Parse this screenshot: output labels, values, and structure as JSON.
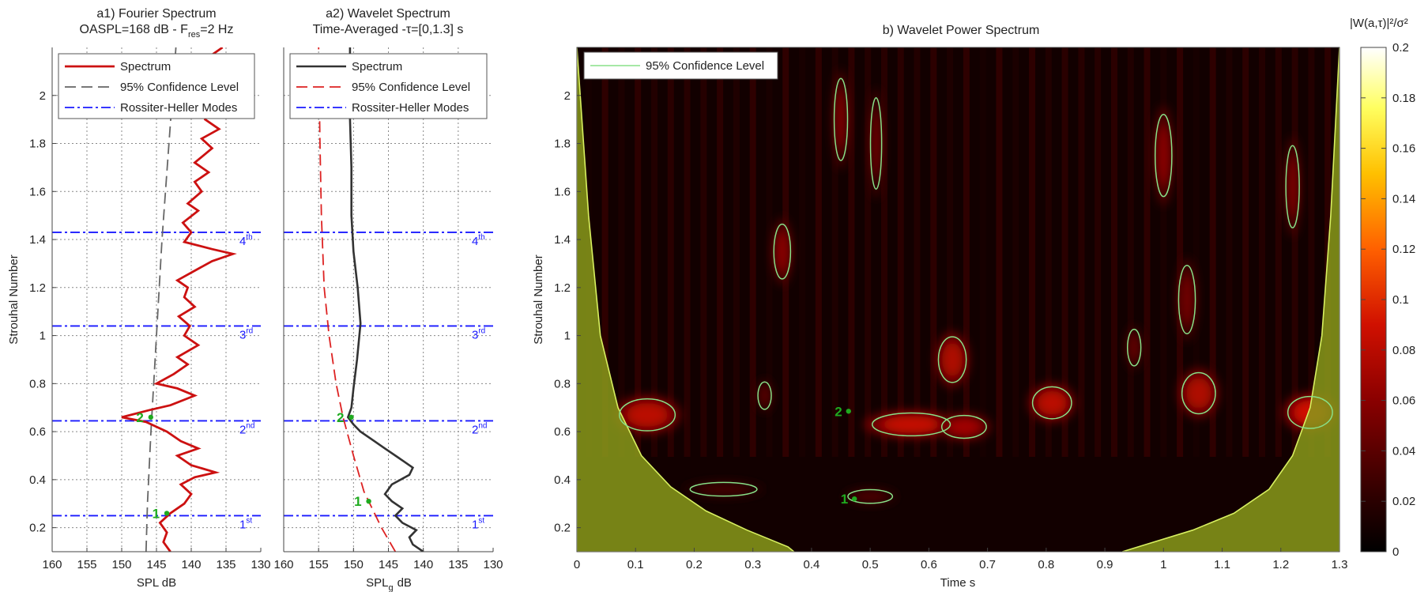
{
  "panels": {
    "a1": {
      "title_line1": "a1) Fourier Spectrum",
      "title_line2_prefix": "OASPL=168 dB - F",
      "title_line2_sub": "res",
      "title_line2_suffix": "=2 Hz",
      "xlabel": "SPL  dB",
      "ylabel": "Strouhal Number"
    },
    "a2": {
      "title_line1": "a2) Wavelet Spectrum",
      "title_line2": "Time-Averaged -τ=[0,1.3] s",
      "xlabel_main": "SPL",
      "xlabel_sub": "g",
      "xlabel_unit": "dB"
    },
    "b": {
      "title": "b) Wavelet Power Spectrum",
      "xlabel": "Time  s",
      "ylabel": "Strouhal Number",
      "colorbar_label": "|W(a,τ)|²/σ²"
    }
  },
  "legend_a": {
    "spectrum": "Spectrum",
    "confidence": "95% Confidence Level",
    "modes": "Rossiter-Heller Modes"
  },
  "legend_b": {
    "confidence": "95% Confidence Level"
  },
  "modes": [
    {
      "base": "1",
      "sup": "st",
      "st": 0.25
    },
    {
      "base": "2",
      "sup": "nd",
      "st": 0.645
    },
    {
      "base": "3",
      "sup": "rd",
      "st": 1.04
    },
    {
      "base": "4",
      "sup": "th",
      "st": 1.43
    }
  ],
  "markers": {
    "a1": [
      {
        "label": "2",
        "spl": 146.5,
        "st": 0.66
      },
      {
        "label": "1",
        "spl": 144.2,
        "st": 0.26
      }
    ],
    "a2": [
      {
        "label": "2",
        "spl": 151.0,
        "st": 0.66
      },
      {
        "label": "1",
        "spl": 148.5,
        "st": 0.31
      }
    ],
    "b": [
      {
        "label": "2",
        "t": 0.455,
        "st": 0.685
      },
      {
        "label": "1",
        "t": 0.465,
        "st": 0.32
      }
    ]
  },
  "colors": {
    "spectrum_a1": "#cc1111",
    "spectrum_a2": "#333333",
    "confidence_a1": "#666666",
    "confidence_a2": "#dd2222",
    "modes": "#1a1aff",
    "contour": "#88e088",
    "marker": "#1faa1f",
    "coi": "#8a9a1a"
  },
  "chart_data": [
    {
      "type": "line",
      "title": "a1) Fourier Spectrum — OASPL=168 dB - Fres=2 Hz",
      "xlabel": "SPL  dB",
      "ylabel": "Strouhal Number",
      "xlim": [
        160,
        130
      ],
      "ylim": [
        0.1,
        2.2
      ],
      "xticks": [
        160,
        155,
        150,
        145,
        140,
        135,
        130
      ],
      "yticks": [
        0.2,
        0.4,
        0.6,
        0.8,
        1,
        1.2,
        1.4,
        1.6,
        1.8,
        2
      ],
      "grid": true,
      "legend_position": "top",
      "series": [
        {
          "name": "Spectrum",
          "points": [
            [
              143,
              0.1
            ],
            [
              144,
              0.14
            ],
            [
              143.5,
              0.18
            ],
            [
              144.5,
              0.22
            ],
            [
              143,
              0.26
            ],
            [
              141,
              0.3
            ],
            [
              140,
              0.34
            ],
            [
              141.5,
              0.38
            ],
            [
              139.5,
              0.41
            ],
            [
              136.5,
              0.43
            ],
            [
              140,
              0.46
            ],
            [
              142,
              0.5
            ],
            [
              139,
              0.53
            ],
            [
              141.5,
              0.56
            ],
            [
              143.5,
              0.6
            ],
            [
              146.5,
              0.64
            ],
            [
              150,
              0.66
            ],
            [
              146,
              0.69
            ],
            [
              143,
              0.71
            ],
            [
              139.5,
              0.75
            ],
            [
              142,
              0.78
            ],
            [
              145,
              0.8
            ],
            [
              142.5,
              0.84
            ],
            [
              140.5,
              0.88
            ],
            [
              142,
              0.91
            ],
            [
              139,
              0.96
            ],
            [
              141,
              1.0
            ],
            [
              140.2,
              1.04
            ],
            [
              141.8,
              1.08
            ],
            [
              139.5,
              1.12
            ],
            [
              141,
              1.16
            ],
            [
              140.5,
              1.2
            ],
            [
              142,
              1.23
            ],
            [
              139.5,
              1.27
            ],
            [
              137,
              1.31
            ],
            [
              134,
              1.34
            ],
            [
              137,
              1.36
            ],
            [
              141,
              1.39
            ],
            [
              140,
              1.43
            ],
            [
              141.2,
              1.47
            ],
            [
              139,
              1.52
            ],
            [
              140.5,
              1.55
            ],
            [
              138.5,
              1.6
            ],
            [
              139.5,
              1.64
            ],
            [
              137.5,
              1.68
            ],
            [
              139.5,
              1.72
            ],
            [
              137,
              1.78
            ],
            [
              138.5,
              1.82
            ],
            [
              136,
              1.86
            ],
            [
              138,
              1.9
            ],
            [
              137,
              1.96
            ],
            [
              138.5,
              2.0
            ],
            [
              137.5,
              2.06
            ],
            [
              138.5,
              2.11
            ],
            [
              137.5,
              2.16
            ],
            [
              135.5,
              2.2
            ]
          ]
        },
        {
          "name": "95% Confidence Level",
          "points": [
            [
              146.5,
              0.1
            ],
            [
              146.3,
              0.3
            ],
            [
              145.8,
              0.6
            ],
            [
              145,
              1.0
            ],
            [
              144.2,
              1.4
            ],
            [
              143.2,
              1.8
            ],
            [
              142.2,
              2.2
            ]
          ]
        }
      ]
    },
    {
      "type": "line",
      "title": "a2) Wavelet Spectrum — Time-Averaged -τ=[0,1.3] s",
      "xlabel": "SPLg dB",
      "xlim": [
        160,
        130
      ],
      "ylim": [
        0.1,
        2.2
      ],
      "xticks": [
        160,
        155,
        150,
        145,
        140,
        135,
        130
      ],
      "yticks": [
        0.2,
        0.4,
        0.6,
        0.8,
        1,
        1.2,
        1.4,
        1.6,
        1.8,
        2
      ],
      "grid": true,
      "legend_position": "top",
      "series": [
        {
          "name": "Spectrum",
          "points": [
            [
              140,
              0.1
            ],
            [
              141.5,
              0.13
            ],
            [
              142,
              0.16
            ],
            [
              141,
              0.19
            ],
            [
              143,
              0.22
            ],
            [
              144,
              0.25
            ],
            [
              143,
              0.28
            ],
            [
              144.5,
              0.31
            ],
            [
              145.5,
              0.34
            ],
            [
              144.5,
              0.38
            ],
            [
              142,
              0.42
            ],
            [
              141.5,
              0.45
            ],
            [
              143.5,
              0.49
            ],
            [
              145.5,
              0.53
            ],
            [
              147,
              0.56
            ],
            [
              149,
              0.6
            ],
            [
              150,
              0.63
            ],
            [
              150.8,
              0.66
            ],
            [
              150.3,
              0.7
            ],
            [
              150,
              0.78
            ],
            [
              149.5,
              0.9
            ],
            [
              149,
              1.05
            ],
            [
              149.4,
              1.2
            ],
            [
              150,
              1.35
            ],
            [
              150.3,
              1.5
            ],
            [
              150.3,
              1.7
            ],
            [
              150.5,
              1.9
            ],
            [
              150.5,
              2.2
            ]
          ]
        },
        {
          "name": "95% Confidence Level",
          "points": [
            [
              144,
              0.1
            ],
            [
              146,
              0.2
            ],
            [
              148.5,
              0.35
            ],
            [
              150,
              0.5
            ],
            [
              151.5,
              0.66
            ],
            [
              152.5,
              0.8
            ],
            [
              153.5,
              1.0
            ],
            [
              154.2,
              1.2
            ],
            [
              154.6,
              1.5
            ],
            [
              154.8,
              1.8
            ],
            [
              155,
              2.2
            ]
          ]
        }
      ]
    },
    {
      "type": "heatmap",
      "title": "b) Wavelet Power Spectrum",
      "xlabel": "Time  s",
      "ylabel": "Strouhal Number",
      "xlim": [
        0,
        1.3
      ],
      "ylim": [
        0.1,
        2.2
      ],
      "xticks": [
        0,
        0.1,
        0.2,
        0.3,
        0.4,
        0.5,
        0.6,
        0.7,
        0.8,
        0.9,
        1,
        1.1,
        1.2,
        1.3
      ],
      "yticks": [
        0.2,
        0.4,
        0.6,
        0.8,
        1,
        1.2,
        1.4,
        1.6,
        1.8,
        2
      ],
      "colorbar": {
        "label": "|W(a,τ)|²/σ²",
        "range": [
          0,
          0.2
        ],
        "ticks": [
          0,
          0.02,
          0.04,
          0.06,
          0.08,
          0.1,
          0.12,
          0.14,
          0.16,
          0.18,
          0.2
        ]
      },
      "legend": [
        "95% Confidence Level"
      ],
      "legend_position": "top-left",
      "hotspots": [
        {
          "t": 0.12,
          "st": 0.67,
          "value": 0.08,
          "wt": 0.05,
          "wst": 0.07
        },
        {
          "t": 0.57,
          "st": 0.63,
          "value": 0.085,
          "wt": 0.07,
          "wst": 0.05
        },
        {
          "t": 0.66,
          "st": 0.62,
          "value": 0.07,
          "wt": 0.04,
          "wst": 0.05
        },
        {
          "t": 0.64,
          "st": 0.9,
          "value": 0.075,
          "wt": 0.025,
          "wst": 0.1
        },
        {
          "t": 0.81,
          "st": 0.72,
          "value": 0.08,
          "wt": 0.035,
          "wst": 0.07
        },
        {
          "t": 1.06,
          "st": 0.76,
          "value": 0.075,
          "wt": 0.03,
          "wst": 0.09
        },
        {
          "t": 1.04,
          "st": 1.15,
          "value": 0.05,
          "wt": 0.015,
          "wst": 0.15
        },
        {
          "t": 0.35,
          "st": 1.35,
          "value": 0.06,
          "wt": 0.015,
          "wst": 0.12
        },
        {
          "t": 0.45,
          "st": 1.9,
          "value": 0.055,
          "wt": 0.012,
          "wst": 0.18
        },
        {
          "t": 0.51,
          "st": 1.8,
          "value": 0.05,
          "wt": 0.01,
          "wst": 0.2
        },
        {
          "t": 1.0,
          "st": 1.75,
          "value": 0.06,
          "wt": 0.015,
          "wst": 0.18
        },
        {
          "t": 1.22,
          "st": 1.62,
          "value": 0.055,
          "wt": 0.012,
          "wst": 0.18
        },
        {
          "t": 0.32,
          "st": 0.75,
          "value": 0.04,
          "wt": 0.012,
          "wst": 0.06
        },
        {
          "t": 0.95,
          "st": 0.95,
          "value": 0.045,
          "wt": 0.012,
          "wst": 0.08
        },
        {
          "t": 0.25,
          "st": 0.36,
          "value": 0.03,
          "wt": 0.06,
          "wst": 0.03
        },
        {
          "t": 0.5,
          "st": 0.33,
          "value": 0.035,
          "wt": 0.04,
          "wst": 0.03
        },
        {
          "t": 1.25,
          "st": 0.68,
          "value": 0.09,
          "wt": 0.04,
          "wst": 0.07
        }
      ]
    }
  ]
}
